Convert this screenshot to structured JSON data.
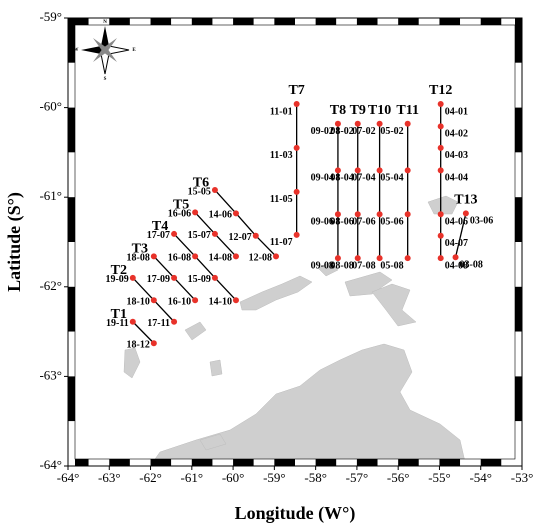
{
  "map": {
    "x_label": "Longitude (W°)",
    "y_label": "Latitude (S°)",
    "xlim": [
      -64,
      -53
    ],
    "ylim": [
      -64,
      -59
    ],
    "xticks": [
      {
        "value": -64,
        "label": "-64°"
      },
      {
        "value": -63,
        "label": "-63°"
      },
      {
        "value": -62,
        "label": "-62°"
      },
      {
        "value": -61,
        "label": "-61°"
      },
      {
        "value": -60,
        "label": "-60°"
      },
      {
        "value": -59,
        "label": "-59°"
      },
      {
        "value": -58,
        "label": "-58°"
      },
      {
        "value": -57,
        "label": "-57°"
      },
      {
        "value": -56,
        "label": "-56°"
      },
      {
        "value": -55,
        "label": "-55°"
      },
      {
        "value": -54,
        "label": "-54°"
      },
      {
        "value": -53,
        "label": "-53°"
      }
    ],
    "yticks": [
      {
        "value": -59,
        "label": "-59°"
      },
      {
        "value": -60,
        "label": "-60°"
      },
      {
        "value": -61,
        "label": "-61°"
      },
      {
        "value": -62,
        "label": "-62°"
      },
      {
        "value": -63,
        "label": "-63°"
      },
      {
        "value": -64,
        "label": "-64°"
      }
    ],
    "compass": [
      "N",
      "S",
      "E",
      "W"
    ],
    "transects": [
      {
        "name": "T1",
        "stations": [
          {
            "label": "19-11",
            "lon": -62.43,
            "lat": -62.39
          },
          {
            "label": "18-12",
            "lon": -61.92,
            "lat": -62.63
          }
        ]
      },
      {
        "name": "T2",
        "stations": [
          {
            "label": "19-09",
            "lon": -62.43,
            "lat": -61.9
          },
          {
            "label": "18-10",
            "lon": -61.92,
            "lat": -62.15
          },
          {
            "label": "17-11",
            "lon": -61.43,
            "lat": -62.39
          }
        ]
      },
      {
        "name": "T3",
        "stations": [
          {
            "label": "18-08",
            "lon": -61.92,
            "lat": -61.66
          },
          {
            "label": "17-09",
            "lon": -61.43,
            "lat": -61.9
          },
          {
            "label": "16-10",
            "lon": -60.92,
            "lat": -62.15
          }
        ]
      },
      {
        "name": "T4",
        "stations": [
          {
            "label": "17-07",
            "lon": -61.43,
            "lat": -61.41
          },
          {
            "label": "16-08",
            "lon": -60.92,
            "lat": -61.66
          },
          {
            "label": "15-09",
            "lon": -60.44,
            "lat": -61.9
          },
          {
            "label": "14-10",
            "lon": -59.93,
            "lat": -62.15
          }
        ]
      },
      {
        "name": "T5",
        "stations": [
          {
            "label": "16-06",
            "lon": -60.92,
            "lat": -61.17
          },
          {
            "label": "15-07",
            "lon": -60.44,
            "lat": -61.41
          },
          {
            "label": "14-08",
            "lon": -59.93,
            "lat": -61.66
          }
        ]
      },
      {
        "name": "T6",
        "stations": [
          {
            "label": "15-05",
            "lon": -60.44,
            "lat": -60.92
          },
          {
            "label": "14-06",
            "lon": -59.93,
            "lat": -61.18
          },
          {
            "label": "12-07",
            "lon": -59.45,
            "lat": -61.43
          },
          {
            "label": "12-08",
            "lon": -58.96,
            "lat": -61.66
          }
        ]
      },
      {
        "name": "T7",
        "stations": [
          {
            "label": "11-01",
            "lon": -58.46,
            "lat": -59.96
          },
          {
            "label": "11-03",
            "lon": -58.46,
            "lat": -60.45
          },
          {
            "label": "11-05",
            "lon": -58.46,
            "lat": -60.94
          },
          {
            "label": "11-07",
            "lon": -58.46,
            "lat": -61.42
          }
        ]
      },
      {
        "name": "T8",
        "stations": [
          {
            "label": "09-02",
            "lon": -57.46,
            "lat": -60.18
          },
          {
            "label": "09-04",
            "lon": -57.46,
            "lat": -60.7
          },
          {
            "label": "09-06",
            "lon": -57.46,
            "lat": -61.19
          },
          {
            "label": "09-08",
            "lon": -57.46,
            "lat": -61.68
          }
        ]
      },
      {
        "name": "T9",
        "stations": [
          {
            "label": "08-02",
            "lon": -56.98,
            "lat": -60.18
          },
          {
            "label": "08-04",
            "lon": -56.98,
            "lat": -60.7
          },
          {
            "label": "08-06",
            "lon": -56.98,
            "lat": -61.19
          },
          {
            "label": "08-08",
            "lon": -56.98,
            "lat": -61.68
          }
        ]
      },
      {
        "name": "T10",
        "stations": [
          {
            "label": "07-02",
            "lon": -56.45,
            "lat": -60.18
          },
          {
            "label": "07-04",
            "lon": -56.45,
            "lat": -60.7
          },
          {
            "label": "07-06",
            "lon": -56.45,
            "lat": -61.19
          },
          {
            "label": "07-08",
            "lon": -56.45,
            "lat": -61.68
          }
        ]
      },
      {
        "name": "T11",
        "stations": [
          {
            "label": "05-02",
            "lon": -55.77,
            "lat": -60.18
          },
          {
            "label": "05-04",
            "lon": -55.77,
            "lat": -60.7
          },
          {
            "label": "05-06",
            "lon": -55.77,
            "lat": -61.19
          },
          {
            "label": "05-08",
            "lon": -55.77,
            "lat": -61.68
          }
        ]
      },
      {
        "name": "T12",
        "stations": [
          {
            "label": "04-01",
            "lon": -54.97,
            "lat": -59.96
          },
          {
            "label": "04-02",
            "lon": -54.97,
            "lat": -60.21
          },
          {
            "label": "04-03",
            "lon": -54.97,
            "lat": -60.45
          },
          {
            "label": "04-04",
            "lon": -54.97,
            "lat": -60.7
          },
          {
            "label": "04-06",
            "lon": -54.97,
            "lat": -61.19
          },
          {
            "label": "04-07",
            "lon": -54.97,
            "lat": -61.43
          },
          {
            "label": "04-08",
            "lon": -54.97,
            "lat": -61.68
          }
        ]
      },
      {
        "name": "T13",
        "stations": [
          {
            "label": "03-06",
            "lon": -54.36,
            "lat": -61.18
          },
          {
            "label": "03-08",
            "lon": -54.61,
            "lat": -61.67
          }
        ]
      }
    ]
  }
}
